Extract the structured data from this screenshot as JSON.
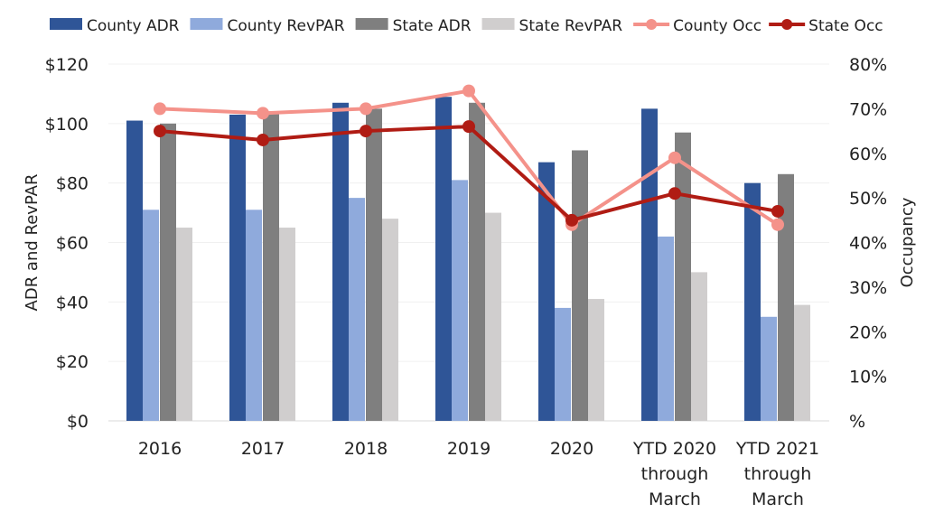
{
  "chart_data": {
    "type": "bar",
    "categories": [
      "2016",
      "2017",
      "2018",
      "2019",
      "2020",
      "YTD 2020\nthrough\nMarch",
      "YTD 2021\nthrough\nMarch"
    ],
    "ylabel": "ADR and RevPAR",
    "y2label": "Occupancy",
    "ylim": [
      0,
      120
    ],
    "y2lim": [
      0,
      80
    ],
    "yticks": [
      "$0",
      "$20",
      "$40",
      "$60",
      "$80",
      "$100",
      "$120"
    ],
    "y2ticks": [
      "%",
      "10%",
      "20%",
      "30%",
      "40%",
      "50%",
      "60%",
      "70%",
      "80%"
    ],
    "grid": true,
    "legend": "top",
    "bar_series": [
      {
        "name": "County ADR",
        "color": "#2f5597",
        "values": [
          101,
          103,
          107,
          109,
          87,
          105,
          80
        ]
      },
      {
        "name": "County RevPAR",
        "color": "#8faadc",
        "values": [
          71,
          71,
          75,
          81,
          38,
          62,
          35
        ]
      },
      {
        "name": "State ADR",
        "color": "#7f7f7f",
        "values": [
          100,
          104,
          105,
          107,
          91,
          97,
          83
        ]
      },
      {
        "name": "State RevPAR",
        "color": "#d0cece",
        "values": [
          65,
          65,
          68,
          70,
          41,
          50,
          39
        ]
      }
    ],
    "line_series": [
      {
        "name": "County Occ",
        "color": "#f4928a",
        "values": [
          70,
          69,
          70,
          74,
          44,
          59,
          44
        ]
      },
      {
        "name": "State Occ",
        "color": "#b01c14",
        "values": [
          65,
          63,
          65,
          66,
          45,
          51,
          47
        ]
      }
    ]
  }
}
